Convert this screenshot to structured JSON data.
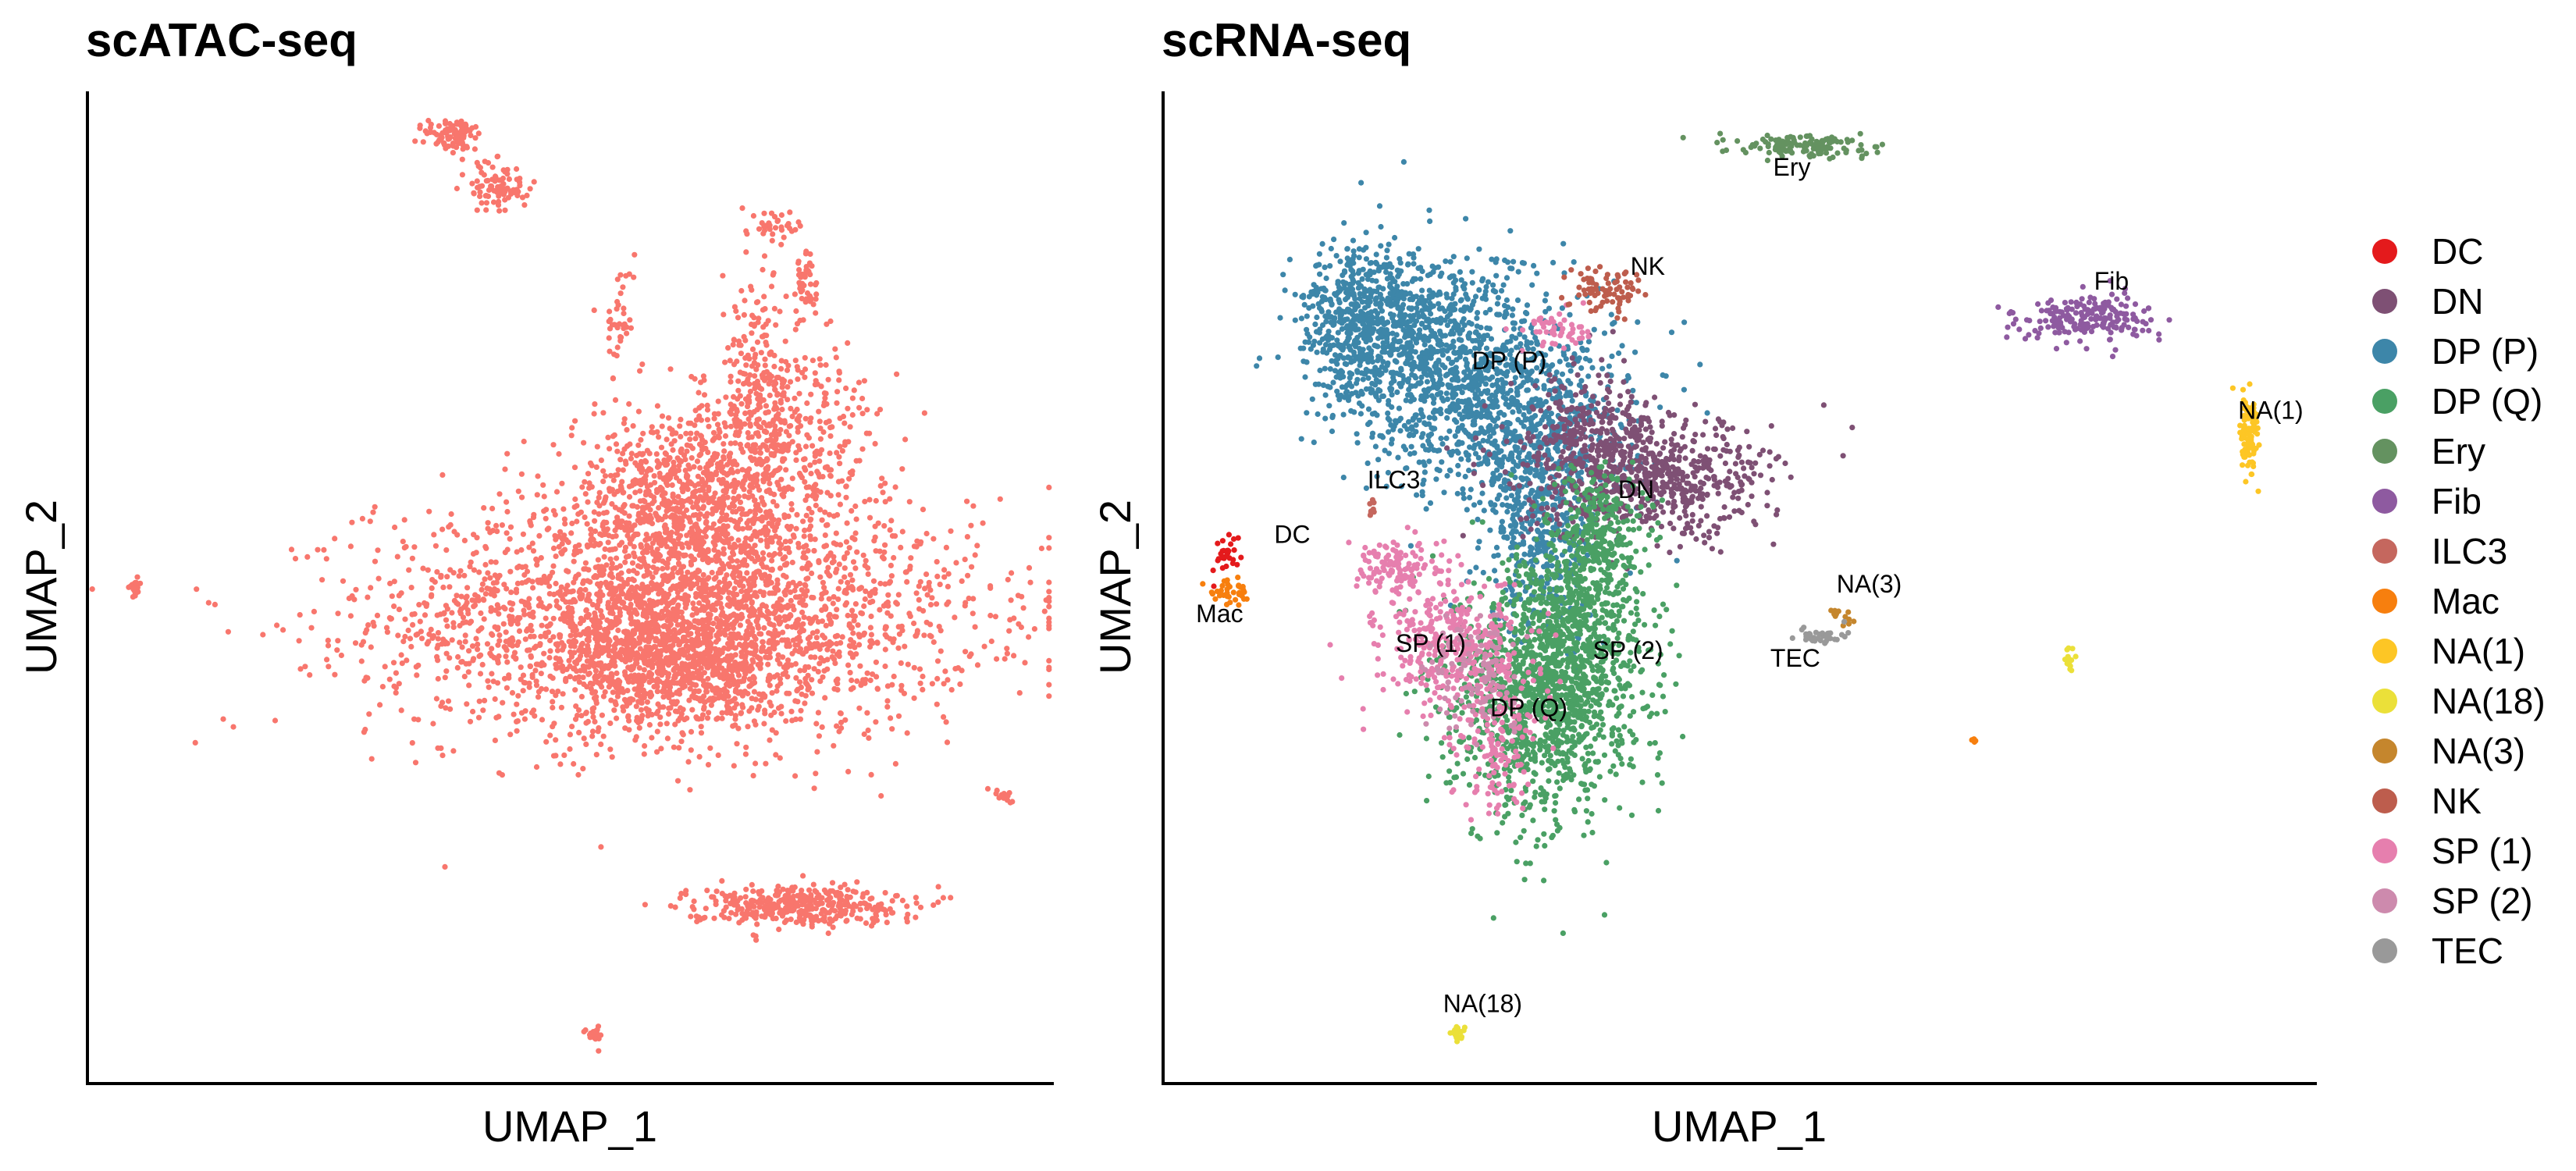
{
  "chart_data": [
    {
      "type": "scatter",
      "title": "scATAC-seq",
      "xlabel": "UMAP_1",
      "ylabel": "UMAP_2",
      "grid": false,
      "legend": "none",
      "point_color": "#F8766D",
      "clusters": [
        {
          "name": "",
          "color": "#F8766D",
          "points": [
            {
              "x": 0.61,
              "y": 0.47,
              "sx": 0.155,
              "sy": 0.06,
              "n": 2600
            },
            {
              "x": 0.59,
              "y": 0.43,
              "sx": 0.06,
              "sy": 0.035,
              "n": 500
            },
            {
              "x": 0.585,
              "y": 0.585,
              "sx": 0.045,
              "sy": 0.05,
              "n": 450
            },
            {
              "x": 0.64,
              "y": 0.585,
              "sx": 0.035,
              "sy": 0.045,
              "n": 300
            },
            {
              "x": 0.694,
              "y": 0.68,
              "sx": 0.02,
              "sy": 0.065,
              "n": 280
            },
            {
              "x": 0.73,
              "y": 0.64,
              "sx": 0.05,
              "sy": 0.05,
              "n": 350
            },
            {
              "x": 0.63,
              "y": 0.42,
              "sx": 0.055,
              "sy": 0.03,
              "n": 300
            },
            {
              "x": 0.745,
              "y": 0.81,
              "sx": 0.005,
              "sy": 0.025,
              "n": 50
            },
            {
              "x": 0.55,
              "y": 0.77,
              "sx": 0.008,
              "sy": 0.03,
              "n": 40
            },
            {
              "x": 0.71,
              "y": 0.865,
              "sx": 0.01,
              "sy": 0.008,
              "n": 30
            },
            {
              "x": 0.38,
              "y": 0.955,
              "sx": 0.015,
              "sy": 0.01,
              "n": 90
            },
            {
              "x": 0.425,
              "y": 0.905,
              "sx": 0.015,
              "sy": 0.013,
              "n": 90
            },
            {
              "x": 0.05,
              "y": 0.5,
              "sx": 0.003,
              "sy": 0.005,
              "n": 25
            },
            {
              "x": 0.95,
              "y": 0.29,
              "sx": 0.004,
              "sy": 0.004,
              "n": 15
            },
            {
              "x": 0.73,
              "y": 0.18,
              "sx": 0.055,
              "sy": 0.01,
              "n": 380
            },
            {
              "x": 0.525,
              "y": 0.05,
              "sx": 0.004,
              "sy": 0.005,
              "n": 20
            }
          ]
        }
      ],
      "cluster_labels": []
    },
    {
      "type": "scatter",
      "title": "scRNA-seq",
      "xlabel": "UMAP_1",
      "ylabel": "UMAP_2",
      "grid": false,
      "legend": "right",
      "legend_entries": [
        {
          "name": "DC",
          "color": "#E41A1C"
        },
        {
          "name": "DN",
          "color": "#7E5074"
        },
        {
          "name": "DP (P)",
          "color": "#3D86A9"
        },
        {
          "name": "DP (Q)",
          "color": "#4AA064"
        },
        {
          "name": "Ery",
          "color": "#649260"
        },
        {
          "name": "Fib",
          "color": "#8E5AA0"
        },
        {
          "name": "ILC3",
          "color": "#C5675E"
        },
        {
          "name": "Mac",
          "color": "#F77F0E"
        },
        {
          "name": "NA(1)",
          "color": "#FDC625"
        },
        {
          "name": "NA(18)",
          "color": "#EBE039"
        },
        {
          "name": "NA(3)",
          "color": "#C5862D"
        },
        {
          "name": "NK",
          "color": "#BD5D4D"
        },
        {
          "name": "SP (1)",
          "color": "#E67FAE"
        },
        {
          "name": "SP (2)",
          "color": "#CD8AAD"
        },
        {
          "name": "TEC",
          "color": "#999999"
        }
      ],
      "clusters": [
        {
          "name": "DP (P)",
          "color": "#3D86A9",
          "points": [
            {
              "x": 0.23,
              "y": 0.74,
              "sx": 0.05,
              "sy": 0.05,
              "n": 900
            },
            {
              "x": 0.31,
              "y": 0.67,
              "sx": 0.05,
              "sy": 0.05,
              "n": 800
            },
            {
              "x": 0.33,
              "y": 0.56,
              "sx": 0.025,
              "sy": 0.05,
              "n": 400
            },
            {
              "x": 0.17,
              "y": 0.77,
              "sx": 0.025,
              "sy": 0.04,
              "n": 400
            }
          ]
        },
        {
          "name": "DN",
          "color": "#7E5074",
          "points": [
            {
              "x": 0.42,
              "y": 0.61,
              "sx": 0.055,
              "sy": 0.03,
              "n": 700
            },
            {
              "x": 0.37,
              "y": 0.66,
              "sx": 0.025,
              "sy": 0.03,
              "n": 200
            }
          ]
        },
        {
          "name": "DP (Q)",
          "color": "#4AA064",
          "points": [
            {
              "x": 0.33,
              "y": 0.39,
              "sx": 0.04,
              "sy": 0.06,
              "n": 1200
            },
            {
              "x": 0.36,
              "y": 0.47,
              "sx": 0.03,
              "sy": 0.05,
              "n": 500
            },
            {
              "x": 0.38,
              "y": 0.56,
              "sx": 0.02,
              "sy": 0.03,
              "n": 200
            }
          ]
        },
        {
          "name": "SP (1)",
          "color": "#E67FAE",
          "points": [
            {
              "x": 0.25,
              "y": 0.44,
              "sx": 0.03,
              "sy": 0.03,
              "n": 350
            },
            {
              "x": 0.2,
              "y": 0.52,
              "sx": 0.02,
              "sy": 0.015,
              "n": 120
            },
            {
              "x": 0.34,
              "y": 0.76,
              "sx": 0.015,
              "sy": 0.01,
              "n": 50
            },
            {
              "x": 0.29,
              "y": 0.35,
              "sx": 0.02,
              "sy": 0.04,
              "n": 150
            }
          ]
        },
        {
          "name": "SP (2)",
          "color": "#CD8AAD",
          "points": [
            {
              "x": 0.27,
              "y": 0.42,
              "sx": 0.02,
              "sy": 0.03,
              "n": 100
            }
          ]
        },
        {
          "name": "NK",
          "color": "#BD5D4D",
          "points": [
            {
              "x": 0.385,
              "y": 0.8,
              "sx": 0.015,
              "sy": 0.012,
              "n": 80
            }
          ]
        },
        {
          "name": "Ery",
          "color": "#649260",
          "points": [
            {
              "x": 0.56,
              "y": 0.945,
              "sx": 0.03,
              "sy": 0.006,
              "n": 140
            }
          ]
        },
        {
          "name": "Fib",
          "color": "#8E5AA0",
          "points": [
            {
              "x": 0.8,
              "y": 0.77,
              "sx": 0.03,
              "sy": 0.012,
              "n": 200
            }
          ]
        },
        {
          "name": "NA(1)",
          "color": "#FDC625",
          "points": [
            {
              "x": 0.941,
              "y": 0.655,
              "sx": 0.004,
              "sy": 0.022,
              "n": 100
            }
          ]
        },
        {
          "name": "NA(18)",
          "color": "#EBE039",
          "points": [
            {
              "x": 0.255,
              "y": 0.05,
              "sx": 0.003,
              "sy": 0.004,
              "n": 25
            },
            {
              "x": 0.786,
              "y": 0.425,
              "sx": 0.002,
              "sy": 0.008,
              "n": 15
            }
          ]
        },
        {
          "name": "NA(3)",
          "color": "#C5862D",
          "points": [
            {
              "x": 0.585,
              "y": 0.47,
              "sx": 0.006,
              "sy": 0.006,
              "n": 12
            }
          ]
        },
        {
          "name": "TEC",
          "color": "#999999",
          "points": [
            {
              "x": 0.565,
              "y": 0.45,
              "sx": 0.012,
              "sy": 0.005,
              "n": 40
            }
          ]
        },
        {
          "name": "DC",
          "color": "#E41A1C",
          "points": [
            {
              "x": 0.055,
              "y": 0.53,
              "sx": 0.006,
              "sy": 0.01,
              "n": 30
            }
          ]
        },
        {
          "name": "Mac",
          "color": "#F77F0E",
          "points": [
            {
              "x": 0.06,
              "y": 0.495,
              "sx": 0.01,
              "sy": 0.006,
              "n": 35
            },
            {
              "x": 0.7,
              "y": 0.345,
              "sx": 0.002,
              "sy": 0.002,
              "n": 4
            }
          ]
        },
        {
          "name": "ILC3",
          "color": "#C5675E",
          "points": [
            {
              "x": 0.18,
              "y": 0.58,
              "sx": 0.002,
              "sy": 0.005,
              "n": 8
            }
          ]
        }
      ],
      "cluster_labels": [
        {
          "text": "Ery",
          "x": 0.545,
          "y": 0.915
        },
        {
          "text": "NK",
          "x": 0.42,
          "y": 0.815
        },
        {
          "text": "Fib",
          "x": 0.822,
          "y": 0.8
        },
        {
          "text": "DP (P)",
          "x": 0.3,
          "y": 0.72
        },
        {
          "text": "NA(1)",
          "x": 0.96,
          "y": 0.67
        },
        {
          "text": "ILC3",
          "x": 0.2,
          "y": 0.6
        },
        {
          "text": "DN",
          "x": 0.41,
          "y": 0.59
        },
        {
          "text": "DC",
          "x": 0.112,
          "y": 0.545
        },
        {
          "text": "NA(3)",
          "x": 0.612,
          "y": 0.495
        },
        {
          "text": "Mac",
          "x": 0.049,
          "y": 0.465
        },
        {
          "text": "SP (1)",
          "x": 0.232,
          "y": 0.435
        },
        {
          "text": "SP (2)",
          "x": 0.403,
          "y": 0.428
        },
        {
          "text": "TEC",
          "x": 0.548,
          "y": 0.42
        },
        {
          "text": "DP (Q)",
          "x": 0.317,
          "y": 0.37
        },
        {
          "text": "NA(18)",
          "x": 0.277,
          "y": 0.072
        }
      ]
    }
  ]
}
